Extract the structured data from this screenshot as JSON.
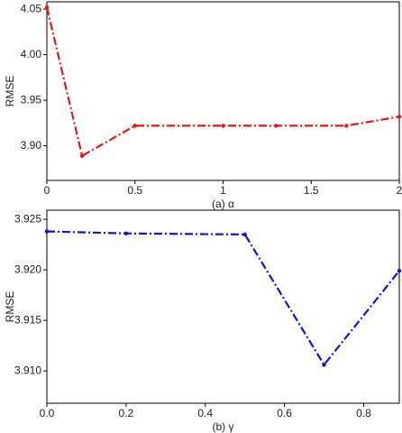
{
  "chart_data": [
    {
      "type": "line",
      "x_label": "(a) α",
      "y_label": "RMSE",
      "x": [
        0,
        0.2,
        0.5,
        1,
        1.3,
        1.7,
        2
      ],
      "series": [
        {
          "color": "#ee1111",
          "values": [
            4.052,
            3.889,
            3.922,
            3.922,
            3.922,
            3.922,
            3.932
          ]
        }
      ],
      "xlim": [
        0,
        2
      ],
      "xticks": [
        0,
        0.5,
        1,
        1.5,
        2
      ],
      "ylim": [
        3.862,
        4.058
      ],
      "yticks": [
        {
          "value": 3.9,
          "label": "3.90"
        },
        3.95,
        {
          "value": 4.0,
          "label": "4.00"
        },
        4.05
      ]
    },
    {
      "type": "line",
      "x_label": "(b) γ",
      "y_label": "RMSE",
      "x": [
        0,
        0.2,
        0.5,
        0.7,
        0.89
      ],
      "series": [
        {
          "color": "#1111dd",
          "values": [
            3.9238,
            3.9236,
            3.9235,
            3.9106,
            3.9199
          ]
        }
      ],
      "xlim": [
        0,
        0.89
      ],
      "xticks": [
        {
          "value": 0,
          "label": "0.0"
        },
        0.2,
        0.4,
        0.6,
        0.8
      ],
      "ylim": [
        3.9068,
        3.9259
      ],
      "yticks": [
        {
          "value": 3.91,
          "label": "3.910"
        },
        3.915,
        {
          "value": 3.92,
          "label": "3.920"
        },
        3.925
      ]
    }
  ]
}
